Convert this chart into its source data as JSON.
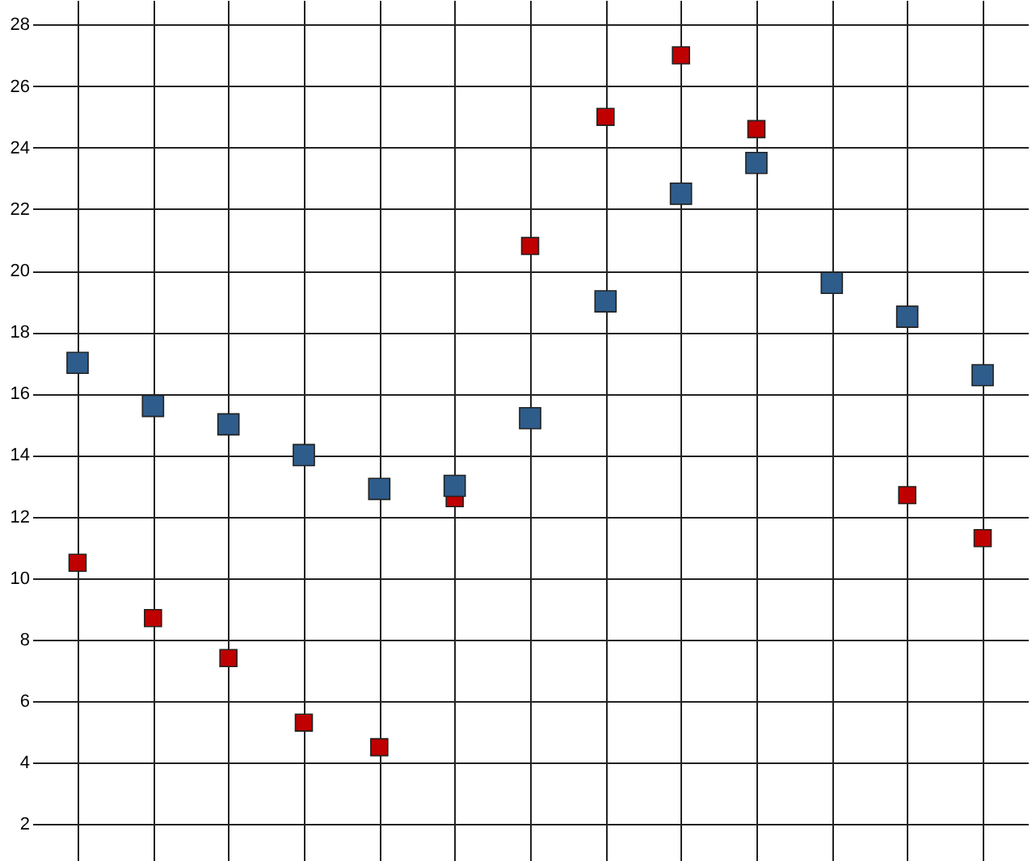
{
  "chart_data": {
    "type": "scatter",
    "categories": [
      null,
      null,
      null,
      null,
      null,
      null,
      null,
      null,
      null,
      null,
      null,
      null,
      null
    ],
    "series": [
      {
        "color": "#c00000",
        "values": [
          10.5,
          8.7,
          7.4,
          5.3,
          4.5,
          12.6,
          20.8,
          25.0,
          27.0,
          24.6,
          null,
          12.7,
          11.3
        ]
      },
      {
        "color": "#2e5d8c",
        "values": [
          17.0,
          15.6,
          15.0,
          14.0,
          12.9,
          13.0,
          15.2,
          19.0,
          22.5,
          23.5,
          19.6,
          18.5,
          16.6
        ]
      }
    ],
    "ylim": [
      0.8,
      28.8
    ],
    "yticks": [
      2,
      4,
      6,
      8,
      10,
      12,
      14,
      16,
      18,
      20,
      22,
      24,
      26,
      28
    ],
    "grid": true,
    "tick_labels": "y",
    "marker": "square",
    "legend": false
  }
}
